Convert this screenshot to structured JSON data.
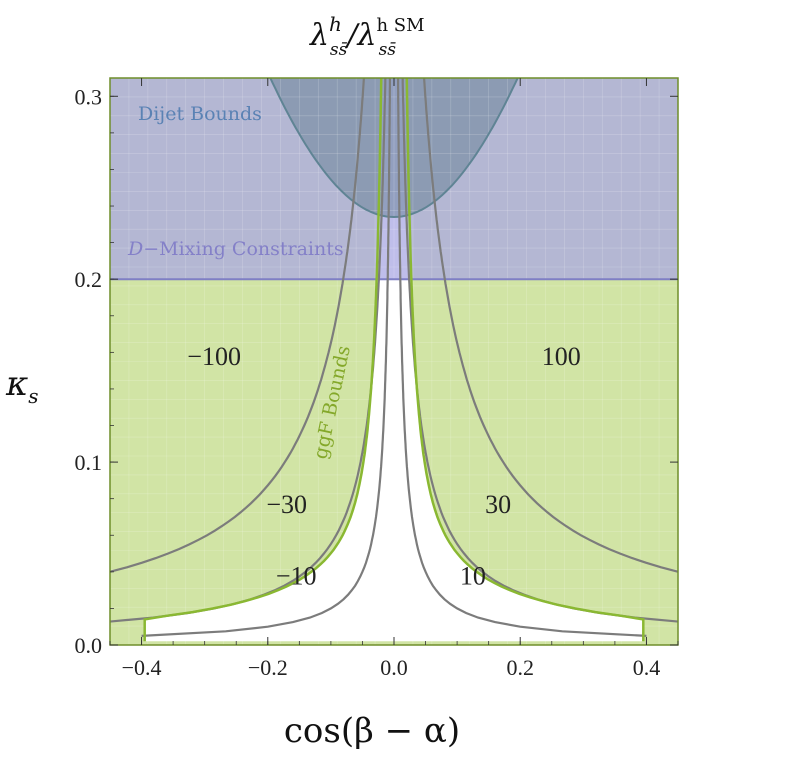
{
  "chart_data": {
    "type": "contour",
    "title": {
      "main": "λ",
      "sup1": "h",
      "sub1": "ss̄",
      "slash": "/λ",
      "sup2": "h SM",
      "sub2": "ss̄"
    },
    "xlabel": "cos(β − α)",
    "ylabel": {
      "main": "κ",
      "sub": "s"
    },
    "xlim": [
      -0.45,
      0.45
    ],
    "ylim": [
      0,
      0.31
    ],
    "x_ticks": [
      -0.4,
      -0.2,
      0.0,
      0.2,
      0.4
    ],
    "x_tick_labels": [
      "−0.4",
      "−0.2",
      "0.0",
      "0.2",
      "0.4"
    ],
    "y_ticks": [
      0.0,
      0.1,
      0.2,
      0.3
    ],
    "y_tick_labels": [
      "0.0",
      "0.1",
      "0.2",
      "0.3"
    ],
    "contours": [
      {
        "level": 10,
        "labels": [
          "−10",
          "10"
        ],
        "label_positions": [
          [
            -0.155,
            0.038
          ],
          [
            0.125,
            0.038
          ]
        ]
      },
      {
        "level": 30,
        "labels": [
          "−30",
          "30"
        ],
        "label_positions": [
          [
            -0.17,
            0.077
          ],
          [
            0.165,
            0.077
          ]
        ]
      },
      {
        "level": 100,
        "labels": [
          "−100",
          "100"
        ],
        "label_positions": [
          [
            -0.285,
            0.158
          ],
          [
            0.265,
            0.158
          ]
        ]
      }
    ],
    "regions": [
      {
        "label": "Dijet Bounds",
        "color": "#5a82b4",
        "fill": "#5b7a8c",
        "ymin_at_center": 0.234
      },
      {
        "label_italic": "D",
        "label": "−Mixing Constraints",
        "color": "#8480c8",
        "fill": "#a7a7e0",
        "ymin": 0.2
      },
      {
        "label": "ggF Bounds",
        "color": "#84a82a",
        "fill": "#cfe3a0"
      }
    ],
    "colors": {
      "contour_line": "#7c7c7c",
      "ggf_line": "#8ab832",
      "dijet_line": "#5f8494",
      "dmix_line": "#7f7fc4",
      "frame": "#6f8e2a"
    }
  }
}
